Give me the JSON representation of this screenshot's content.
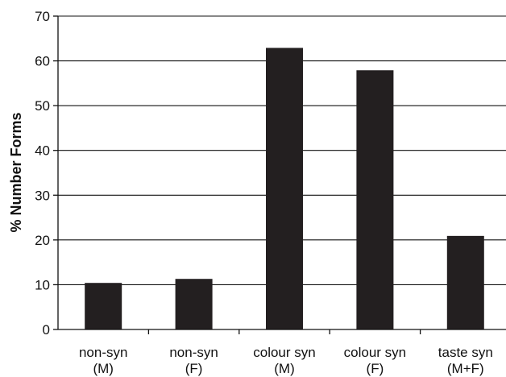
{
  "chart_data": {
    "type": "bar",
    "title": "",
    "xlabel": "",
    "ylabel": "% Number Forms",
    "ylim": [
      0,
      70
    ],
    "yticks": [
      0,
      10,
      20,
      30,
      40,
      50,
      60,
      70
    ],
    "grid": true,
    "categories": [
      [
        "non-syn",
        "(M)"
      ],
      [
        "non-syn",
        "(F)"
      ],
      [
        "colour syn",
        "(M)"
      ],
      [
        "colour syn",
        "(F)"
      ],
      [
        "taste syn",
        "(M+F)"
      ]
    ],
    "values": [
      10.4,
      11.3,
      62.9,
      57.9,
      20.9
    ],
    "colors": {
      "bar": "#231f20",
      "axis": "#111111"
    }
  }
}
